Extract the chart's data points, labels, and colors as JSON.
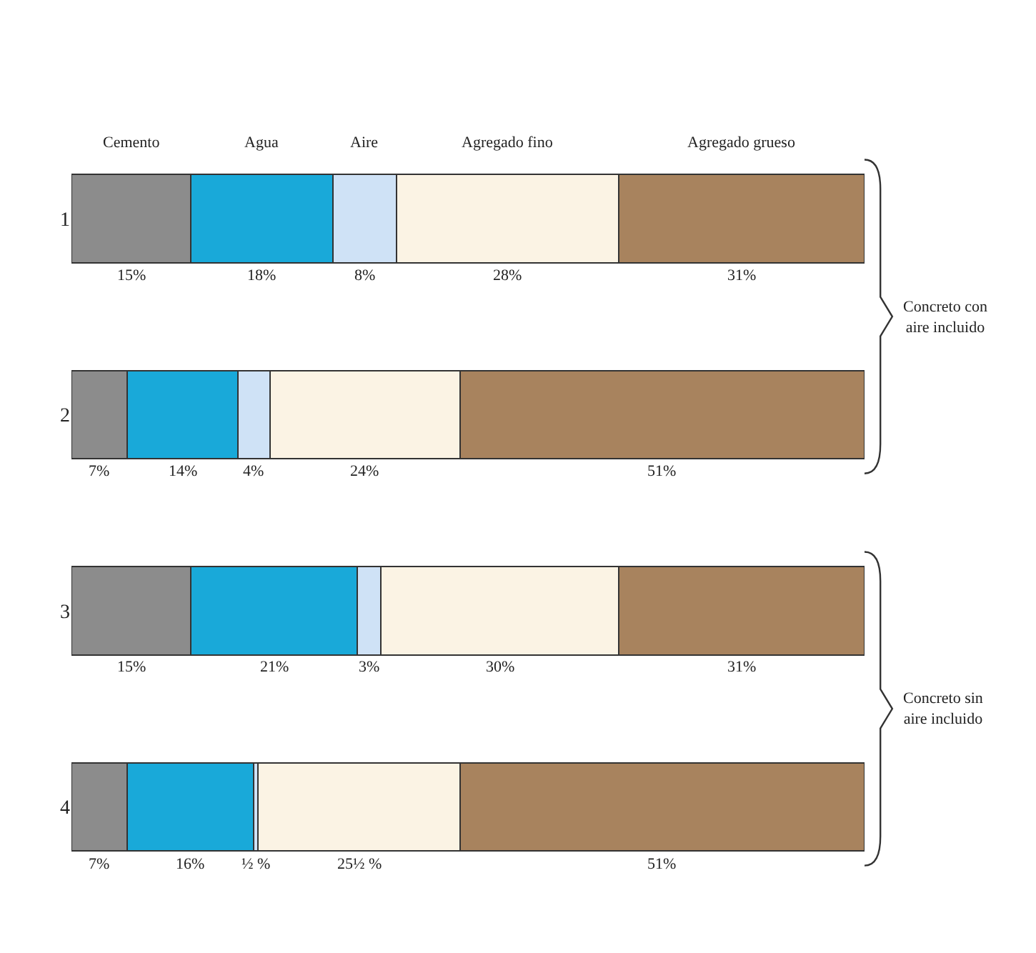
{
  "chart_data": {
    "type": "bar",
    "orientation": "horizontal",
    "stacked": true,
    "categories": [
      "1",
      "2",
      "3",
      "4"
    ],
    "series": [
      {
        "name": "Cemento",
        "color": "#8c8c8c",
        "values": [
          15,
          7,
          15,
          7
        ],
        "value_labels": [
          "15%",
          "7%",
          "15%",
          "7%"
        ]
      },
      {
        "name": "Agua",
        "color": "#19a9d9",
        "values": [
          18,
          14,
          21,
          16
        ],
        "value_labels": [
          "18%",
          "14%",
          "21%",
          "16%"
        ]
      },
      {
        "name": "Aire",
        "color": "#cfe2f6",
        "values": [
          8,
          4,
          3,
          0.5
        ],
        "value_labels": [
          "8%",
          "4%",
          "3%",
          "½ %"
        ]
      },
      {
        "name": "Agregado fino",
        "color": "#fbf3e4",
        "values": [
          28,
          24,
          30,
          25.5
        ],
        "value_labels": [
          "28%",
          "24%",
          "30%",
          "25½ %"
        ]
      },
      {
        "name": "Agregado grueso",
        "color": "#a8835e",
        "values": [
          31,
          51,
          31,
          51
        ],
        "value_labels": [
          "31%",
          "51%",
          "31%",
          "51%"
        ]
      }
    ],
    "xlim": [
      0,
      100
    ],
    "tick_labels": "y",
    "legend": false,
    "annotations": [
      "Concreto con\naire incluido",
      "Concreto sin\naire incluido"
    ]
  }
}
